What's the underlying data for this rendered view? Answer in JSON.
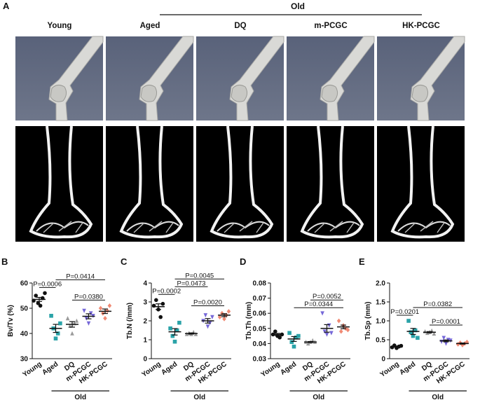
{
  "figure": {
    "panel": "A",
    "group_label": "Old",
    "columns": [
      "Young",
      "Aged",
      "DQ",
      "m-PCGC",
      "HK-PCGC"
    ]
  },
  "chart_data": [
    {
      "type": "dot",
      "panel": "B",
      "ylabel": "Bv/Tv (%)",
      "ylim": [
        30,
        60
      ],
      "yticks": [
        30,
        40,
        50,
        60
      ],
      "group": {
        "label": "Old",
        "members": [
          "Aged",
          "DQ",
          "m-PCGC",
          "HK-PCGC"
        ]
      },
      "series": [
        {
          "name": "Young",
          "color": "#111111",
          "marker": "circle",
          "values": [
            53,
            55,
            52,
            51,
            54,
            56
          ],
          "mean": 53.5,
          "error": 0.8
        },
        {
          "name": "Aged",
          "color": "#2aa3a8",
          "marker": "square",
          "values": [
            47,
            42,
            38,
            40,
            44
          ],
          "mean": 42,
          "error": 1.6
        },
        {
          "name": "DQ",
          "color": "#9a9a9a",
          "marker": "triangle",
          "values": [
            46,
            43,
            40,
            44,
            45
          ],
          "mean": 43.6,
          "error": 1.1
        },
        {
          "name": "m-PCGC",
          "color": "#7668d8",
          "marker": "triangle-down",
          "values": [
            49,
            46,
            44,
            48,
            47
          ],
          "mean": 46.8,
          "error": 1.0
        },
        {
          "name": "HK-PCGC",
          "color": "#f08a74",
          "marker": "diamond",
          "values": [
            50,
            48,
            46,
            49,
            51
          ],
          "mean": 48.8,
          "error": 0.9
        }
      ],
      "comparisons": [
        {
          "label": "P=0.0006",
          "between": [
            "Young",
            "Aged"
          ]
        },
        {
          "label": "P=0.0380",
          "between": [
            "DQ",
            "HK-PCGC"
          ]
        },
        {
          "label": "P=0.0414",
          "between": [
            "Aged",
            "HK-PCGC"
          ]
        }
      ]
    },
    {
      "type": "dot",
      "panel": "C",
      "ylabel": "Tb.N (/mm)",
      "ylim": [
        0,
        4
      ],
      "yticks": [
        0,
        1,
        2,
        3,
        4
      ],
      "group": {
        "label": "Old",
        "members": [
          "Aged",
          "DQ",
          "m-PCGC",
          "HK-PCGC"
        ]
      },
      "series": [
        {
          "name": "Young",
          "color": "#111111",
          "marker": "circle",
          "values": [
            2.8,
            3.1,
            2.6,
            2.2,
            2.9
          ],
          "mean": 2.75,
          "error": 0.15
        },
        {
          "name": "Aged",
          "color": "#2aa3a8",
          "marker": "square",
          "values": [
            1.6,
            1.2,
            0.9,
            1.5,
            1.9
          ],
          "mean": 1.42,
          "error": 0.17
        },
        {
          "name": "DQ",
          "color": "#9a9a9a",
          "marker": "triangle",
          "values": [
            1.3,
            1.35,
            1.3,
            1.4,
            1.3
          ],
          "mean": 1.33,
          "error": 0.03
        },
        {
          "name": "m-PCGC",
          "color": "#7668d8",
          "marker": "triangle-down",
          "values": [
            2.0,
            2.3,
            1.7,
            1.9,
            2.2
          ],
          "mean": 2.0,
          "error": 0.12
        },
        {
          "name": "HK-PCGC",
          "color": "#f08a74",
          "marker": "diamond",
          "values": [
            2.2,
            2.4,
            2.1,
            2.3,
            2.5
          ],
          "mean": 2.3,
          "error": 0.08
        }
      ],
      "comparisons": [
        {
          "label": "P=0.0002",
          "between": [
            "Young",
            "Aged"
          ]
        },
        {
          "label": "P=0.0020",
          "between": [
            "DQ",
            "HK-PCGC"
          ]
        },
        {
          "label": "P=0.0473",
          "between": [
            "Aged",
            "m-PCGC"
          ]
        },
        {
          "label": "P=0.0045",
          "between": [
            "Aged",
            "HK-PCGC"
          ]
        }
      ]
    },
    {
      "type": "dot",
      "panel": "D",
      "ylabel": "Tb.Th (mm)",
      "ylim": [
        0.03,
        0.08
      ],
      "yticks": [
        0.03,
        0.04,
        0.05,
        0.06,
        0.07,
        0.08
      ],
      "group": {
        "label": "Old",
        "members": [
          "Aged",
          "DQ",
          "m-PCGC",
          "HK-PCGC"
        ]
      },
      "series": [
        {
          "name": "Young",
          "color": "#111111",
          "marker": "circle",
          "values": [
            0.046,
            0.048,
            0.045,
            0.044,
            0.046
          ],
          "mean": 0.046,
          "error": 0.0007
        },
        {
          "name": "Aged",
          "color": "#2aa3a8",
          "marker": "square",
          "values": [
            0.047,
            0.041,
            0.038,
            0.044,
            0.045
          ],
          "mean": 0.043,
          "error": 0.0016
        },
        {
          "name": "DQ",
          "color": "#9a9a9a",
          "marker": "triangle",
          "values": [
            0.041,
            0.04,
            0.041,
            0.042,
            0.041
          ],
          "mean": 0.041,
          "error": 0.0003
        },
        {
          "name": "m-PCGC",
          "color": "#7668d8",
          "marker": "triangle-down",
          "values": [
            0.06,
            0.048,
            0.046,
            0.052,
            0.047
          ],
          "mean": 0.05,
          "error": 0.0025
        },
        {
          "name": "HK-PCGC",
          "color": "#f08a74",
          "marker": "diamond",
          "values": [
            0.055,
            0.048,
            0.052,
            0.05,
            0.049
          ],
          "mean": 0.051,
          "error": 0.0012
        }
      ],
      "comparisons": [
        {
          "label": "P=0.0344",
          "between": [
            "Aged",
            "HK-PCGC"
          ]
        },
        {
          "label": "P=0.0052",
          "between": [
            "DQ",
            "HK-PCGC"
          ]
        }
      ]
    },
    {
      "type": "dot",
      "panel": "E",
      "ylabel": "Tb.Sp (mm)",
      "ylim": [
        0,
        2.0
      ],
      "yticks": [
        0,
        0.5,
        {
          "value": 1,
          "label": "1.0"
        },
        1.5,
        {
          "value": 2,
          "label": "2.0"
        }
      ],
      "group": {
        "label": "Old",
        "members": [
          "Aged",
          "DQ",
          "m-PCGC",
          "HK-PCGC"
        ]
      },
      "series": [
        {
          "name": "Young",
          "color": "#111111",
          "marker": "circle",
          "values": [
            0.3,
            0.35,
            0.28,
            0.32,
            0.34
          ],
          "mean": 0.32,
          "error": 0.015
        },
        {
          "name": "Aged",
          "color": "#2aa3a8",
          "marker": "square",
          "values": [
            1.0,
            0.7,
            0.6,
            0.75,
            0.55
          ],
          "mean": 0.72,
          "error": 0.08
        },
        {
          "name": "DQ",
          "color": "#9a9a9a",
          "marker": "triangle",
          "values": [
            0.72,
            0.68,
            0.7,
            0.74,
            0.66
          ],
          "mean": 0.7,
          "error": 0.015
        },
        {
          "name": "m-PCGC",
          "color": "#7668d8",
          "marker": "triangle-down",
          "values": [
            0.45,
            0.55,
            0.4,
            0.5,
            0.48
          ],
          "mean": 0.47,
          "error": 0.025
        },
        {
          "name": "HK-PCGC",
          "color": "#f08a74",
          "marker": "diamond",
          "values": [
            0.38,
            0.42,
            0.36,
            0.4,
            0.44
          ],
          "mean": 0.4,
          "error": 0.015
        }
      ],
      "comparisons": [
        {
          "label": "P=0.0201",
          "between": [
            "Young",
            "Aged"
          ]
        },
        {
          "label": "P=0.0001",
          "between": [
            "DQ",
            "HK-PCGC"
          ]
        },
        {
          "label": "P=0.0382",
          "between": [
            "Aged",
            "HK-PCGC"
          ]
        }
      ]
    }
  ]
}
